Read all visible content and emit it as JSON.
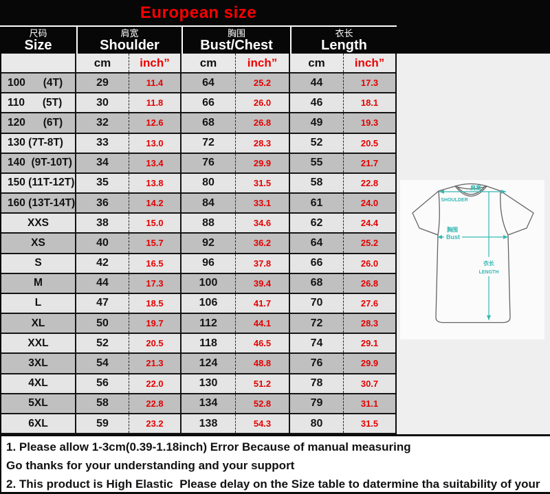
{
  "title": "European size",
  "colors": {
    "title_red": "#fb0000",
    "value_red": "#e40000",
    "teal": "#35b8b3",
    "dark_row": "#c0c0c0",
    "light_row": "#e5e5e5"
  },
  "table": {
    "column_groups": [
      {
        "zh": "尺码",
        "en": "Size"
      },
      {
        "zh": "肩宽",
        "en": "Shoulder"
      },
      {
        "zh": "胸围",
        "en": "Bust/Chest"
      },
      {
        "zh": "衣长",
        "en": "Length"
      }
    ],
    "units": {
      "cm": "cm",
      "inch": "inch”"
    }
  },
  "chart_data": {
    "type": "table",
    "title": "European size",
    "columns": [
      "Size",
      "Shoulder (cm)",
      "Shoulder (inch)",
      "Bust/Chest (cm)",
      "Bust/Chest (inch)",
      "Length (cm)",
      "Length (inch)"
    ],
    "rows": [
      [
        "100      (4T)",
        "29",
        "11.4",
        "64",
        "25.2",
        "44",
        "17.3"
      ],
      [
        "110      (5T)",
        "30",
        "11.8",
        "66",
        "26.0",
        "46",
        "18.1"
      ],
      [
        "120      (6T)",
        "32",
        "12.6",
        "68",
        "26.8",
        "49",
        "19.3"
      ],
      [
        "130 (7T-8T)",
        "33",
        "13.0",
        "72",
        "28.3",
        "52",
        "20.5"
      ],
      [
        "140  (9T-10T)",
        "34",
        "13.4",
        "76",
        "29.9",
        "55",
        "21.7"
      ],
      [
        "150 (11T-12T)",
        "35",
        "13.8",
        "80",
        "31.5",
        "58",
        "22.8"
      ],
      [
        "160 (13T-14T)",
        "36",
        "14.2",
        "84",
        "33.1",
        "61",
        "24.0"
      ],
      [
        "XXS",
        "38",
        "15.0",
        "88",
        "34.6",
        "62",
        "24.4"
      ],
      [
        "XS",
        "40",
        "15.7",
        "92",
        "36.2",
        "64",
        "25.2"
      ],
      [
        "S",
        "42",
        "16.5",
        "96",
        "37.8",
        "66",
        "26.0"
      ],
      [
        "M",
        "44",
        "17.3",
        "100",
        "39.4",
        "68",
        "26.8"
      ],
      [
        "L",
        "47",
        "18.5",
        "106",
        "41.7",
        "70",
        "27.6"
      ],
      [
        "XL",
        "50",
        "19.7",
        "112",
        "44.1",
        "72",
        "28.3"
      ],
      [
        "XXL",
        "52",
        "20.5",
        "118",
        "46.5",
        "74",
        "29.1"
      ],
      [
        "3XL",
        "54",
        "21.3",
        "124",
        "48.8",
        "76",
        "29.9"
      ],
      [
        "4XL",
        "56",
        "22.0",
        "130",
        "51.2",
        "78",
        "30.7"
      ],
      [
        "5XL",
        "58",
        "22.8",
        "134",
        "52.8",
        "79",
        "31.1"
      ],
      [
        "6XL",
        "59",
        "23.2",
        "138",
        "54.3",
        "80",
        "31.5"
      ]
    ]
  },
  "diagram": {
    "shoulder_zh": "肩宽",
    "shoulder_en": "SHOULDER",
    "bust_zh": "胸围",
    "bust_en": "Bust",
    "length_zh": "衣长",
    "length_en": "LENGTH"
  },
  "notes": {
    "line1": "1. Please allow 1-3cm(0.39-1.18inch) Error Because of manual measuring",
    "line2": "Go thanks for your understanding and your support",
    "line3": "2. This product is High Elastic  Please delay on the Size table to datermine tha suitability of your"
  }
}
